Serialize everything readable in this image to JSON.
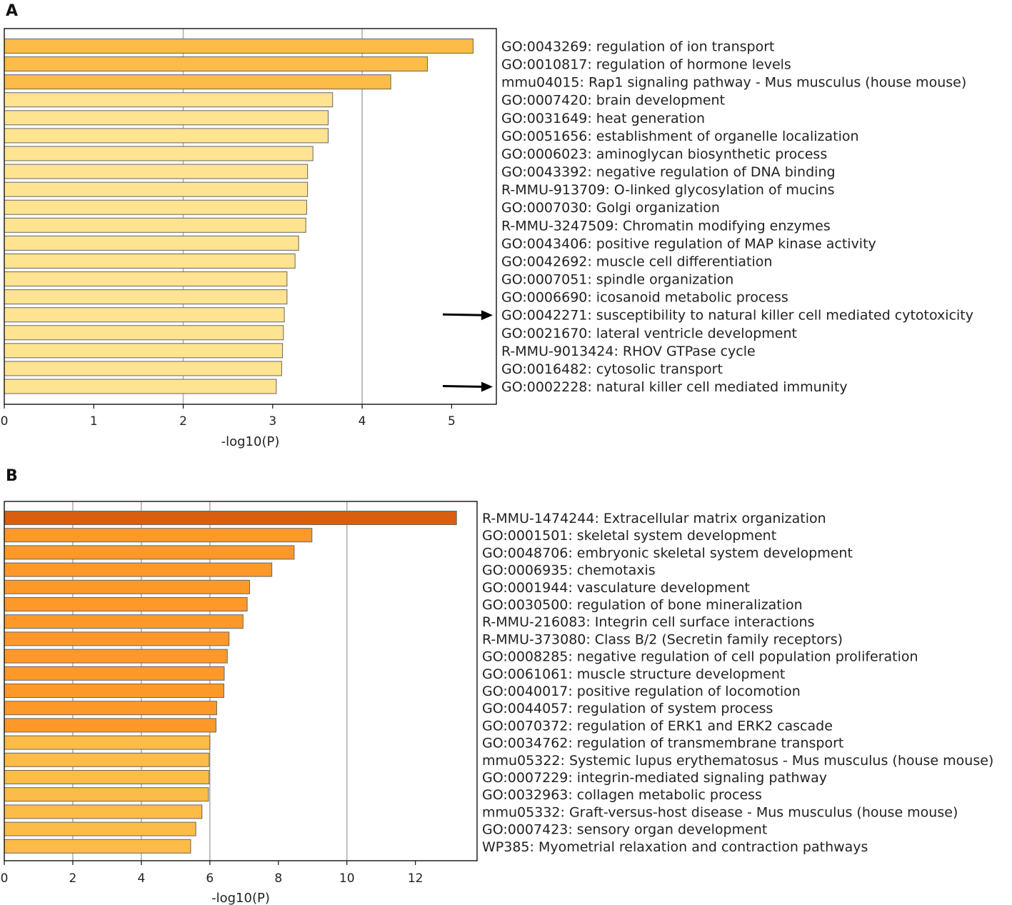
{
  "chart_data": [
    {
      "type": "bar",
      "orientation": "horizontal",
      "panel": "A",
      "xlabel": "-log10(P)",
      "xlim": [
        0,
        5.5
      ],
      "xticks": [
        0,
        1,
        2,
        3,
        4,
        5
      ],
      "gridlines": [
        2,
        4
      ],
      "annotations": [
        {
          "kind": "arrow",
          "points_to": "GO:0042271: susceptibility to natural killer cell mediated cytotoxicity"
        },
        {
          "kind": "arrow",
          "points_to": "GO:0002228: natural killer cell mediated immunity"
        }
      ],
      "categories": [
        "GO:0043269: regulation of ion transport",
        "GO:0010817: regulation of hormone levels",
        "mmu04015: Rap1 signaling pathway - Mus musculus (house mouse)",
        "GO:0007420: brain development",
        "GO:0031649: heat generation",
        "GO:0051656: establishment of organelle localization",
        "GO:0006023: aminoglycan biosynthetic process",
        "GO:0043392: negative regulation of DNA binding",
        "R-MMU-913709: O-linked glycosylation of mucins",
        "GO:0007030: Golgi organization",
        "R-MMU-3247509: Chromatin modifying enzymes",
        "GO:0043406: positive regulation of MAP kinase activity",
        "GO:0042692: muscle cell differentiation",
        "GO:0007051: spindle organization",
        "GO:0006690: icosanoid metabolic process",
        "GO:0042271: susceptibility to natural killer cell mediated cytotoxicity",
        "GO:0021670: lateral ventricle development",
        "R-MMU-9013424: RHOV GTPase cycle",
        "GO:0016482: cytosolic transport",
        "GO:0002228: natural killer cell mediated immunity"
      ],
      "values": [
        5.24,
        4.73,
        4.32,
        3.67,
        3.62,
        3.62,
        3.45,
        3.39,
        3.39,
        3.38,
        3.37,
        3.29,
        3.25,
        3.16,
        3.16,
        3.13,
        3.12,
        3.11,
        3.1,
        3.04
      ],
      "colors": [
        "#fdbb47",
        "#fdbb47",
        "#fdbb47",
        "#fee391",
        "#fee391",
        "#fee391",
        "#fee391",
        "#fee391",
        "#fee391",
        "#fee391",
        "#fee391",
        "#fee391",
        "#fee391",
        "#fee391",
        "#fee391",
        "#fee391",
        "#fee391",
        "#fee391",
        "#fee391",
        "#fee391"
      ]
    },
    {
      "type": "bar",
      "orientation": "horizontal",
      "panel": "B",
      "xlabel": "-log10(P)",
      "xlim": [
        0,
        13.8
      ],
      "xticks": [
        0,
        2,
        4,
        6,
        8,
        10,
        12
      ],
      "gridlines": [
        2,
        4,
        6,
        10
      ],
      "categories": [
        "R-MMU-1474244: Extracellular matrix organization",
        "GO:0001501: skeletal system development",
        "GO:0048706: embryonic skeletal system development",
        "GO:0006935: chemotaxis",
        "GO:0001944: vasculature development",
        "GO:0030500: regulation of bone mineralization",
        "R-MMU-216083: Integrin cell surface interactions",
        "R-MMU-373080: Class B/2 (Secretin family receptors)",
        "GO:0008285: negative regulation of cell population proliferation",
        "GO:0061061: muscle structure development",
        "GO:0040017: positive regulation of locomotion",
        "GO:0044057: regulation of system process",
        "GO:0070372: regulation of ERK1 and ERK2 cascade",
        "GO:0034762: regulation of transmembrane transport",
        "mmu05322: Systemic lupus erythematosus - Mus musculus (house mouse)",
        "GO:0007229: integrin-mediated signaling pathway",
        "GO:0032963: collagen metabolic process",
        "mmu05332: Graft-versus-host disease - Mus musculus (house mouse)",
        "GO:0007423: sensory organ development",
        "WP385: Myometrial relaxation and contraction pathways"
      ],
      "values": [
        13.2,
        8.98,
        8.46,
        7.81,
        7.16,
        7.09,
        6.97,
        6.56,
        6.51,
        6.42,
        6.41,
        6.2,
        6.18,
        6.0,
        5.98,
        5.98,
        5.96,
        5.77,
        5.59,
        5.44
      ],
      "colors": [
        "#d95f0e",
        "#fe9929",
        "#fe9929",
        "#fe9929",
        "#fe9929",
        "#fe9929",
        "#fe9929",
        "#fe9929",
        "#fe9929",
        "#fe9929",
        "#fe9929",
        "#fe9929",
        "#fe9929",
        "#fdbb47",
        "#fdbb47",
        "#fdbb47",
        "#fdbb47",
        "#fdbb47",
        "#fdbb47",
        "#fdbb47"
      ]
    }
  ]
}
